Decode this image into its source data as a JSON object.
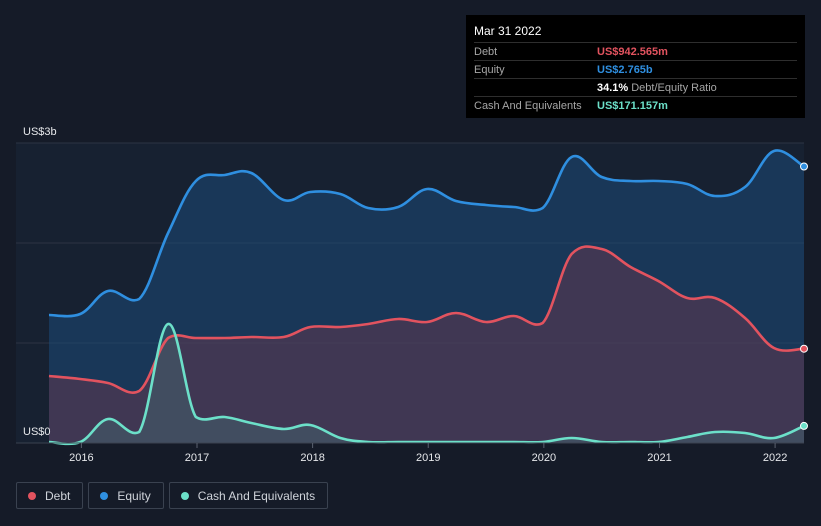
{
  "chart_data": {
    "type": "area",
    "title": "",
    "ylabel_top": "US$3b",
    "ylabel_bottom": "US$0",
    "ylim": [
      0,
      3.0
    ],
    "xlim": [
      2015.72,
      2022.25
    ],
    "x_ticks": [
      {
        "value": 2016,
        "label": "2016"
      },
      {
        "value": 2017,
        "label": "2017"
      },
      {
        "value": 2018,
        "label": "2018"
      },
      {
        "value": 2019,
        "label": "2019"
      },
      {
        "value": 2020,
        "label": "2020"
      },
      {
        "value": 2021,
        "label": "2021"
      },
      {
        "value": 2022,
        "label": "2022"
      }
    ],
    "series": [
      {
        "name": "Equity",
        "color": "#2f8fe0",
        "points": [
          [
            2015.72,
            1.28
          ],
          [
            2015.99,
            1.29
          ],
          [
            2016.23,
            1.52
          ],
          [
            2016.5,
            1.44
          ],
          [
            2016.75,
            2.1
          ],
          [
            2016.99,
            2.62
          ],
          [
            2017.24,
            2.68
          ],
          [
            2017.47,
            2.7
          ],
          [
            2017.75,
            2.43
          ],
          [
            2017.98,
            2.51
          ],
          [
            2018.24,
            2.49
          ],
          [
            2018.48,
            2.35
          ],
          [
            2018.74,
            2.36
          ],
          [
            2018.99,
            2.54
          ],
          [
            2019.24,
            2.42
          ],
          [
            2019.5,
            2.38
          ],
          [
            2019.74,
            2.36
          ],
          [
            2019.99,
            2.35
          ],
          [
            2020.24,
            2.86
          ],
          [
            2020.5,
            2.66
          ],
          [
            2020.75,
            2.62
          ],
          [
            2020.99,
            2.62
          ],
          [
            2021.24,
            2.59
          ],
          [
            2021.48,
            2.47
          ],
          [
            2021.74,
            2.56
          ],
          [
            2021.99,
            2.92
          ],
          [
            2022.25,
            2.765
          ]
        ]
      },
      {
        "name": "Debt",
        "color": "#e2535f",
        "points": [
          [
            2015.72,
            0.67
          ],
          [
            2015.99,
            0.64
          ],
          [
            2016.23,
            0.6
          ],
          [
            2016.5,
            0.52
          ],
          [
            2016.75,
            1.05
          ],
          [
            2016.99,
            1.05
          ],
          [
            2017.24,
            1.05
          ],
          [
            2017.47,
            1.06
          ],
          [
            2017.75,
            1.06
          ],
          [
            2017.98,
            1.16
          ],
          [
            2018.24,
            1.16
          ],
          [
            2018.48,
            1.19
          ],
          [
            2018.74,
            1.24
          ],
          [
            2018.99,
            1.21
          ],
          [
            2019.24,
            1.3
          ],
          [
            2019.5,
            1.21
          ],
          [
            2019.74,
            1.27
          ],
          [
            2019.99,
            1.2
          ],
          [
            2020.24,
            1.89
          ],
          [
            2020.5,
            1.94
          ],
          [
            2020.75,
            1.76
          ],
          [
            2020.99,
            1.62
          ],
          [
            2021.24,
            1.45
          ],
          [
            2021.48,
            1.45
          ],
          [
            2021.74,
            1.25
          ],
          [
            2021.99,
            0.95
          ],
          [
            2022.25,
            0.943
          ]
        ]
      },
      {
        "name": "Cash And Equivalents",
        "color": "#6ce0c9",
        "points": [
          [
            2015.72,
            0.01
          ],
          [
            2015.99,
            0.01
          ],
          [
            2016.23,
            0.24
          ],
          [
            2016.5,
            0.11
          ],
          [
            2016.75,
            1.19
          ],
          [
            2016.99,
            0.26
          ],
          [
            2017.24,
            0.26
          ],
          [
            2017.47,
            0.2
          ],
          [
            2017.75,
            0.14
          ],
          [
            2017.98,
            0.18
          ],
          [
            2018.24,
            0.05
          ],
          [
            2018.48,
            0.01
          ],
          [
            2018.74,
            0.01
          ],
          [
            2018.99,
            0.01
          ],
          [
            2019.24,
            0.01
          ],
          [
            2019.5,
            0.01
          ],
          [
            2019.74,
            0.01
          ],
          [
            2019.99,
            0.01
          ],
          [
            2020.24,
            0.05
          ],
          [
            2020.5,
            0.01
          ],
          [
            2020.75,
            0.01
          ],
          [
            2020.99,
            0.01
          ],
          [
            2021.24,
            0.06
          ],
          [
            2021.48,
            0.11
          ],
          [
            2021.74,
            0.1
          ],
          [
            2021.99,
            0.05
          ],
          [
            2022.25,
            0.171
          ]
        ]
      }
    ],
    "legend_position": "bottom-left",
    "grid": true
  },
  "tooltip": {
    "date": "Mar 31 2022",
    "rows": [
      {
        "label": "Debt",
        "value": "US$942.565m",
        "color": "#e2535f"
      },
      {
        "label": "Equity",
        "value": "US$2.765b",
        "color": "#2f8fe0"
      }
    ],
    "ratio_value": "34.1%",
    "ratio_label": "Debt/Equity Ratio",
    "cash_label": "Cash And Equivalents",
    "cash_value": "US$171.157m",
    "cash_color": "#6ce0c9"
  },
  "legend": [
    {
      "label": "Debt",
      "color": "#e2535f"
    },
    {
      "label": "Equity",
      "color": "#2f8fe0"
    },
    {
      "label": "Cash And Equivalents",
      "color": "#6ce0c9"
    }
  ]
}
